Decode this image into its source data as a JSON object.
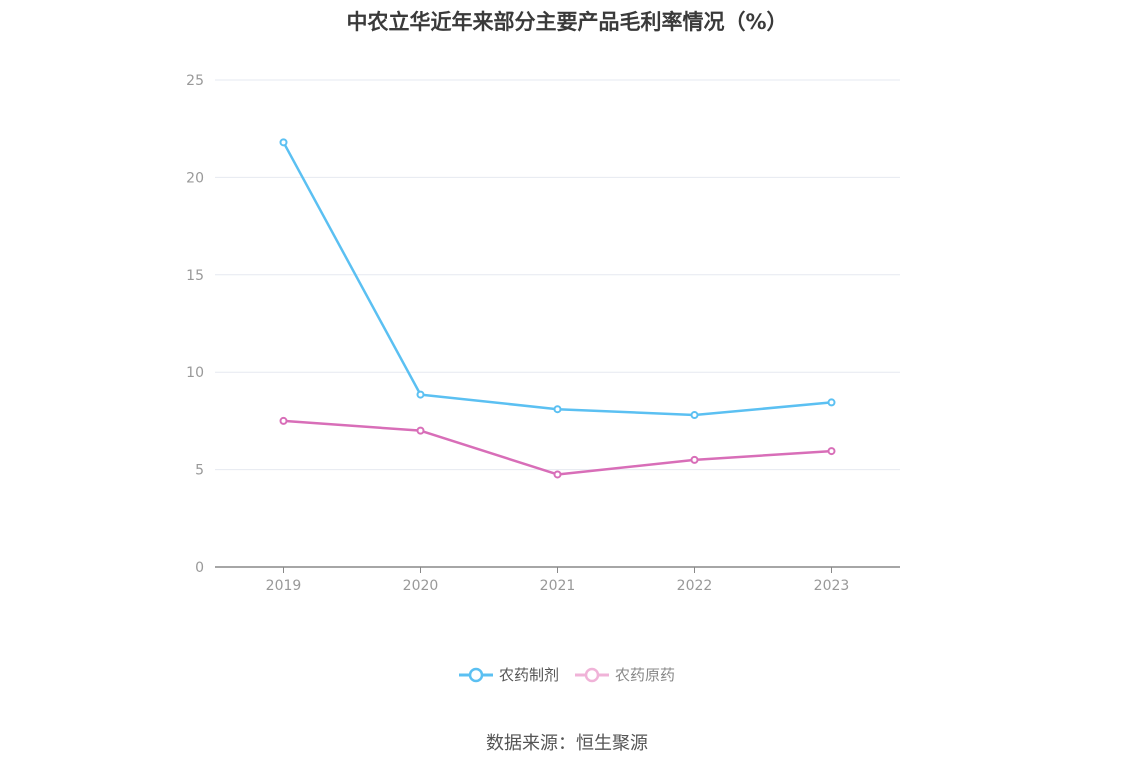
{
  "chart_data": {
    "type": "line",
    "title": "中农立华近年来部分主要产品毛利率情况（%）",
    "categories": [
      "2019",
      "2020",
      "2021",
      "2022",
      "2023"
    ],
    "series": [
      {
        "name": "农药制剂",
        "color": "#5bc0f2",
        "values": [
          21.8,
          8.85,
          8.1,
          7.8,
          8.45
        ]
      },
      {
        "name": "农药原药",
        "color": "#d86eb8",
        "values": [
          7.5,
          7.0,
          4.75,
          5.5,
          5.95
        ]
      }
    ],
    "ylim": [
      0,
      25
    ],
    "yticks": [
      0,
      5,
      10,
      15,
      20,
      25
    ],
    "grid": true,
    "legend_position": "bottom-center"
  },
  "legend": {
    "series0": "农药制剂",
    "series1": "农药原药"
  },
  "source": "数据来源：恒生聚源"
}
